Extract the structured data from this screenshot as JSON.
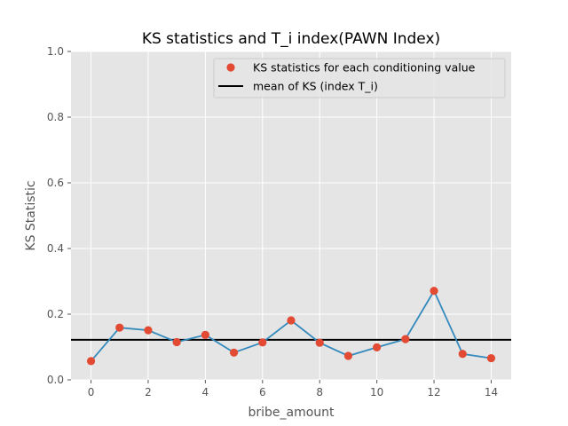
{
  "chart_data": {
    "type": "line",
    "title": "KS statistics and T_i index(PAWN Index)",
    "xlabel": "bribe_amount",
    "ylabel": "KS Statistic",
    "xlim": [
      -0.7,
      14.7
    ],
    "ylim": [
      0.0,
      1.0
    ],
    "x_ticks": [
      "0",
      "2",
      "4",
      "6",
      "8",
      "10",
      "12",
      "14"
    ],
    "x_tick_values": [
      0,
      2,
      4,
      6,
      8,
      10,
      12,
      14
    ],
    "y_ticks": [
      "0.0",
      "0.2",
      "0.4",
      "0.6",
      "0.8",
      "1.0"
    ],
    "y_tick_values": [
      0.0,
      0.2,
      0.4,
      0.6,
      0.8,
      1.0
    ],
    "grid": true,
    "legend_position": "top-right",
    "series": [
      {
        "name": "KS statistics for each conditioning value",
        "x": [
          0,
          1,
          2,
          3,
          4,
          5,
          6,
          7,
          8,
          9,
          10,
          11,
          12,
          13,
          14
        ],
        "values": [
          0.057,
          0.159,
          0.151,
          0.115,
          0.137,
          0.083,
          0.114,
          0.181,
          0.113,
          0.073,
          0.099,
          0.124,
          0.271,
          0.079,
          0.066
        ],
        "marker_color": "#E24A33",
        "line_color": "#348ABD"
      },
      {
        "name": "mean of KS (index T_i)",
        "value": 0.122,
        "line_color": "#000000"
      }
    ],
    "colors": {
      "plot_background": "#E5E5E5",
      "grid": "#FFFFFF"
    }
  }
}
